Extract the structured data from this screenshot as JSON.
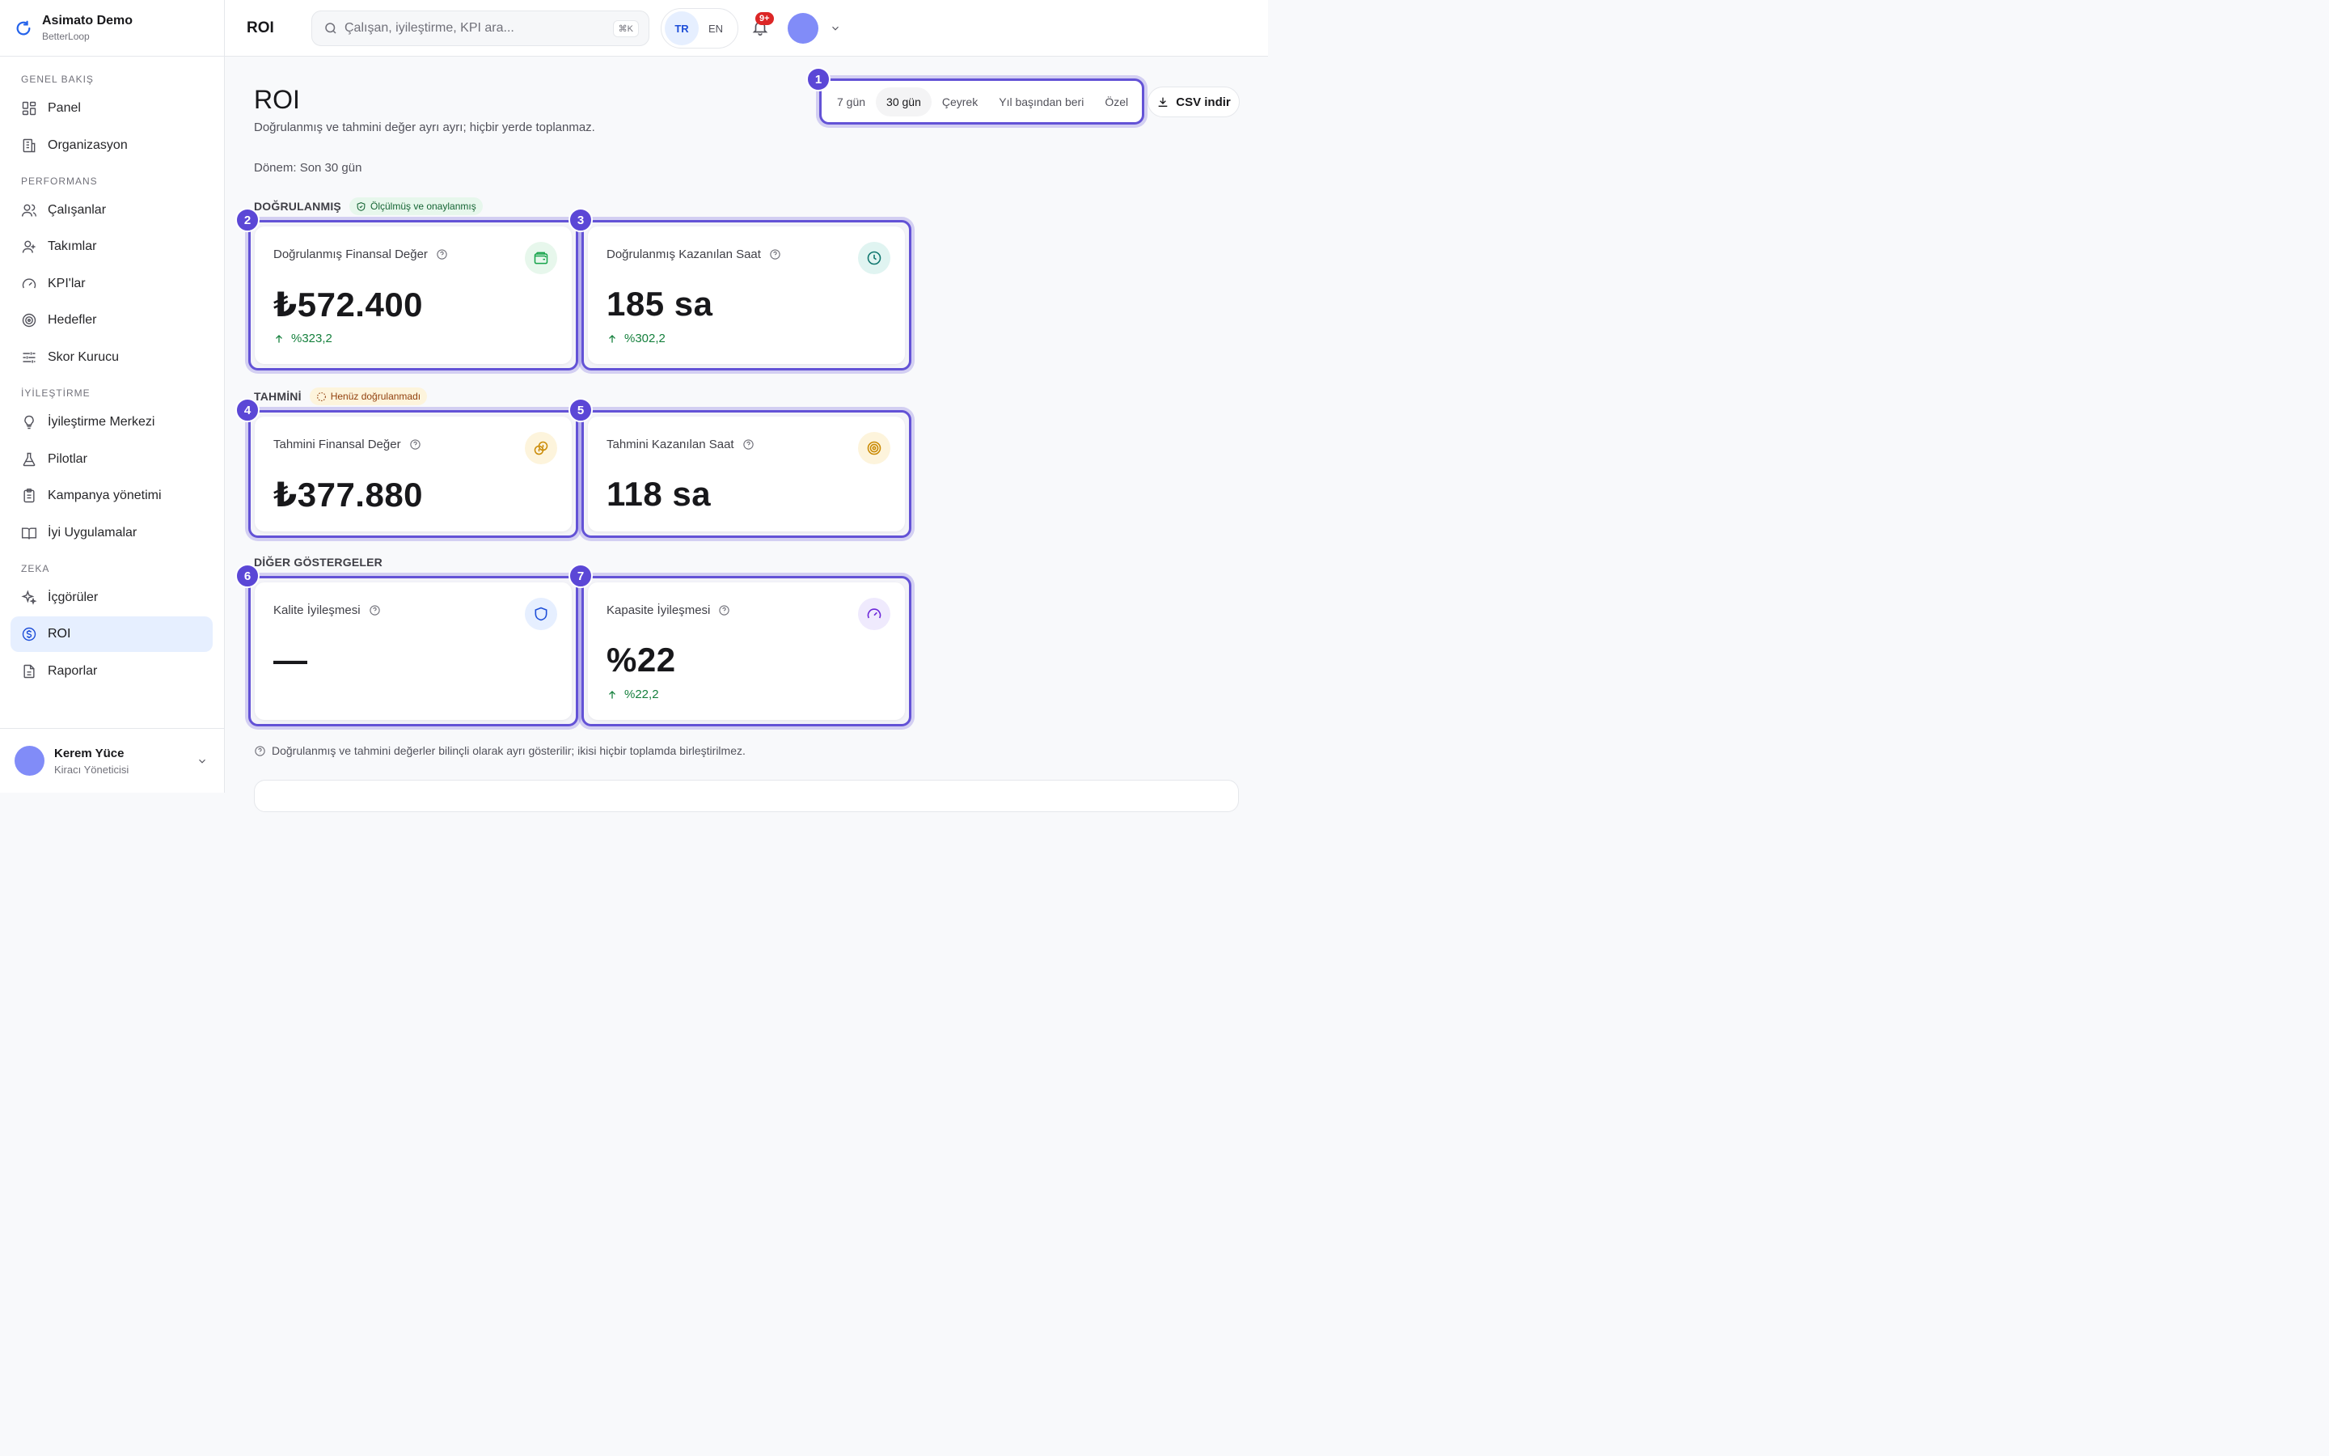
{
  "brand": {
    "name": "Asimato Demo",
    "sub": "BetterLoop"
  },
  "sidebar": {
    "sections": [
      {
        "label": "GENEL BAKIŞ",
        "items": [
          {
            "label": "Panel",
            "icon": "grid-icon"
          },
          {
            "label": "Organizasyon",
            "icon": "building-icon"
          }
        ]
      },
      {
        "label": "PERFORMANS",
        "items": [
          {
            "label": "Çalışanlar",
            "icon": "users-icon"
          },
          {
            "label": "Takımlar",
            "icon": "team-icon"
          },
          {
            "label": "KPI'lar",
            "icon": "gauge-icon"
          },
          {
            "label": "Hedefler",
            "icon": "target-icon"
          },
          {
            "label": "Skor Kurucu",
            "icon": "sliders-icon"
          }
        ]
      },
      {
        "label": "İYİLEŞTİRME",
        "items": [
          {
            "label": "İyileştirme Merkezi",
            "icon": "lightbulb-icon"
          },
          {
            "label": "Pilotlar",
            "icon": "flask-icon"
          },
          {
            "label": "Kampanya yönetimi",
            "icon": "clipboard-icon"
          },
          {
            "label": "İyi Uygulamalar",
            "icon": "book-icon"
          }
        ]
      },
      {
        "label": "ZEKA",
        "items": [
          {
            "label": "İçgörüler",
            "icon": "sparkles-icon"
          },
          {
            "label": "ROI",
            "icon": "dollar-circle-icon",
            "active": true
          },
          {
            "label": "Raporlar",
            "icon": "file-icon"
          }
        ]
      }
    ],
    "user": {
      "name": "Kerem Yüce",
      "role": "Kiracı Yöneticisi"
    }
  },
  "topbar": {
    "title": "ROI",
    "search_placeholder": "Çalışan, iyileştirme, KPI ara...",
    "shortcut": "⌘K",
    "lang": [
      "TR",
      "EN"
    ],
    "lang_active": "TR",
    "notifications": "9+"
  },
  "main": {
    "title": "ROI",
    "subtitle": "Doğrulanmış ve tahmini değer ayrı ayrı; hiçbir yerde toplanmaz.",
    "period": "Dönem: Son 30 gün",
    "ranges": [
      "7 gün",
      "30 gün",
      "Çeyrek",
      "Yıl başından beri",
      "Özel"
    ],
    "range_active": "30 gün",
    "csv_label": "CSV indir",
    "sections": {
      "verified": {
        "label": "DOĞRULANMIŞ",
        "chip": "Ölçülmüş ve onaylanmış"
      },
      "estimated": {
        "label": "TAHMİNİ",
        "chip": "Henüz doğrulanmadı"
      },
      "other": {
        "label": "DİĞER GÖSTERGELER"
      }
    },
    "cards": [
      {
        "num": "2",
        "title": "Doğrulanmış Finansal Değer",
        "value": "₺572.400",
        "delta": "%323,2",
        "icon": "wallet-icon",
        "icon_bg": "#e7f7ec",
        "icon_color": "#16a34a"
      },
      {
        "num": "3",
        "title": "Doğrulanmış Kazanılan Saat",
        "value": "185 sa",
        "delta": "%302,2",
        "icon": "clock-icon",
        "icon_bg": "#e0f4f1",
        "icon_color": "#0f766e"
      },
      {
        "num": "4",
        "title": "Tahmini Finansal Değer",
        "value": "₺377.880",
        "delta": "",
        "icon": "coins-icon",
        "icon_bg": "#fdf4dc",
        "icon_color": "#ca8a04"
      },
      {
        "num": "5",
        "title": "Tahmini Kazanılan Saat",
        "value": "118 sa",
        "delta": "",
        "icon": "target-icon",
        "icon_bg": "#fdf4dc",
        "icon_color": "#ca8a04"
      },
      {
        "num": "6",
        "title": "Kalite İyileşmesi",
        "value": "—",
        "delta": "",
        "icon": "shield-icon",
        "icon_bg": "#e6efff",
        "icon_color": "#1d4ed8"
      },
      {
        "num": "7",
        "title": "Kapasite İyileşmesi",
        "value": "%22",
        "delta": "%22,2",
        "icon": "gauge-icon",
        "icon_bg": "#efeafd",
        "icon_color": "#6d28d9"
      }
    ],
    "range_badge": "1",
    "footnote": "Doğrulanmış ve tahmini değerler bilinçli olarak ayrı gösterilir; ikisi hiçbir toplamda birleştirilmez."
  }
}
